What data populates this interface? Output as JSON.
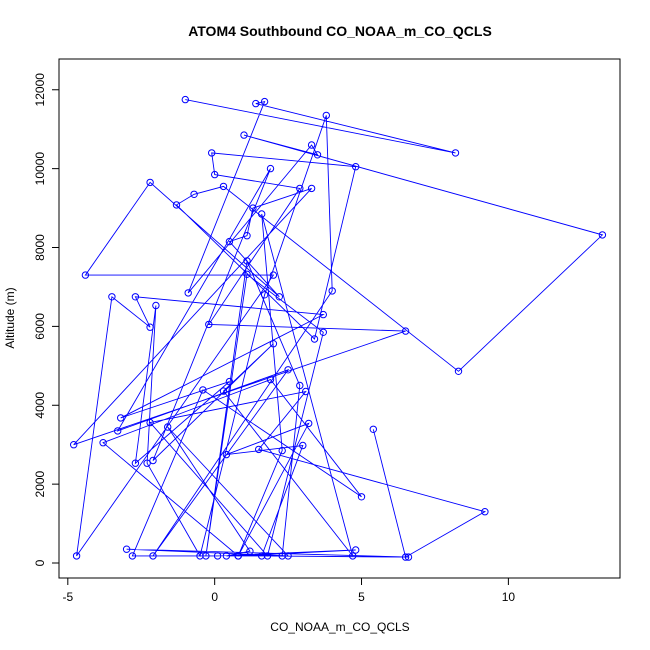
{
  "chart_data": {
    "type": "line",
    "title": "ATOM4 Southbound CO_NOAA_m_CO_QCLS",
    "xlabel": "CO_NOAA_m_CO_QCLS",
    "ylabel": "Altitude (m)",
    "xlim": [
      -5.3,
      13.8
    ],
    "ylim": [
      -380,
      12780
    ],
    "x_ticks": [
      -5,
      0,
      5,
      10
    ],
    "y_ticks": [
      0,
      2000,
      4000,
      6000,
      8000,
      10000,
      12000
    ],
    "x_tick_labels": [
      "-5",
      "0",
      "5",
      "10"
    ],
    "y_tick_labels": [
      "0",
      "2000",
      "4000",
      "6000",
      "8000",
      "10000",
      "12000"
    ],
    "grid": false,
    "legend": "none",
    "series": [
      {
        "color": "#0000ff",
        "marker": "open-circle",
        "x": [
          -1.0,
          8.2,
          1.4,
          1.7,
          -0.9,
          3.3,
          3.5,
          1.0,
          13.2,
          8.3,
          0.3,
          -0.7,
          -1.3,
          3.4,
          4.8,
          -0.1,
          0.0,
          2.9,
          -0.2,
          6.5,
          -4.8,
          3.3,
          1.3,
          1.1,
          0.5,
          2.2,
          -2.2,
          -4.4,
          2.0,
          -4.7,
          -3.5,
          -2.2,
          -2.7,
          3.7,
          -3.2,
          0.5,
          -2.7,
          -2.0,
          -2.3,
          -0.5,
          1.7,
          3.8,
          4.0,
          -2.1,
          2.5,
          -3.3,
          1.9,
          -2.1,
          2.0,
          0.3,
          4.7,
          1.6,
          2.3,
          0.8,
          -3.8,
          1.9,
          5.0,
          -0.4,
          -2.8,
          0.1,
          4.8,
          0.8,
          3.2,
          0.4,
          3.0,
          1.6,
          6.6,
          -3.0,
          2.5,
          -1.6,
          1.2,
          0.4,
          2.3,
          2.9,
          1.1,
          -0.3,
          1.1,
          3.7,
          1.8,
          -2.2,
          3.1,
          1.5,
          9.2,
          6.5,
          5.4
        ],
        "y": [
          11750,
          10400,
          11650,
          11700,
          6850,
          10600,
          10350,
          10850,
          8320,
          4860,
          9550,
          9350,
          9080,
          5680,
          10050,
          10400,
          9850,
          9500,
          6050,
          5880,
          3000,
          9500,
          9000,
          8300,
          8150,
          6750,
          9650,
          7300,
          7300,
          180,
          6750,
          5980,
          6750,
          6300,
          3680,
          4600,
          2530,
          6530,
          2530,
          180,
          6800,
          11350,
          6900,
          180,
          4900,
          3350,
          10000,
          2600,
          5560,
          4360,
          180,
          8850,
          2850,
          180,
          3050,
          4650,
          1680,
          4390,
          180,
          180,
          330,
          180,
          3540,
          2750,
          2980,
          180,
          150,
          350,
          180,
          3450,
          300,
          180,
          180,
          4500,
          7660,
          180,
          7320,
          5850,
          180,
          3560,
          4350,
          2880,
          1300,
          150,
          3390
        ]
      }
    ]
  }
}
